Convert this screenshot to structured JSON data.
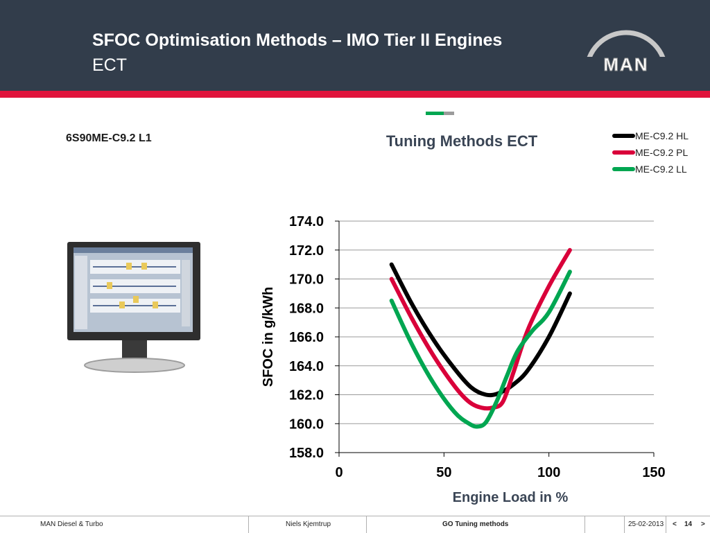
{
  "header": {
    "title": "SFOC Optimisation Methods – IMO Tier II Engines",
    "subtitle": "ECT",
    "logo_text": "MAN",
    "bg_color": "#323d4b",
    "accent_color": "#e0143c"
  },
  "engine_label": "6S90ME-C9.2 L1",
  "image": {
    "icon": "monitor-icon"
  },
  "chart_data": {
    "type": "line",
    "title": "Tuning Methods ECT",
    "xlabel": "Engine Load in %",
    "ylabel": "SFOC in g/kWh",
    "xlim": [
      0,
      150
    ],
    "ylim": [
      158,
      174
    ],
    "xticks": [
      "0",
      "50",
      "100",
      "150"
    ],
    "yticks": [
      "158.0",
      "160.0",
      "162.0",
      "164.0",
      "166.0",
      "168.0",
      "170.0",
      "172.0",
      "174.0"
    ],
    "grid": "horizontal",
    "legend_position": "top-right",
    "series": [
      {
        "name": "ME-C9.2 HL",
        "color": "#000000",
        "x": [
          25,
          35,
          45,
          55,
          63,
          70,
          76,
          83,
          90,
          100,
          110
        ],
        "y": [
          171.0,
          168.2,
          165.8,
          163.8,
          162.5,
          162.0,
          162.1,
          162.7,
          163.7,
          166.0,
          169.0
        ]
      },
      {
        "name": "ME-C9.2 PL",
        "color": "#d9003a",
        "x": [
          25,
          35,
          45,
          55,
          62,
          68,
          73,
          78,
          83,
          90,
          100,
          110
        ],
        "y": [
          170.0,
          167.2,
          164.7,
          162.6,
          161.5,
          161.1,
          161.1,
          161.5,
          163.5,
          166.5,
          169.5,
          172.0
        ]
      },
      {
        "name": "ME-C9.2 LL",
        "color": "#00a651",
        "x": [
          25,
          35,
          45,
          55,
          62,
          66,
          70,
          75,
          80,
          85,
          92,
          100,
          110
        ],
        "y": [
          168.5,
          165.4,
          162.8,
          160.8,
          160.0,
          159.8,
          160.1,
          161.5,
          163.3,
          165.0,
          166.4,
          167.7,
          170.5
        ]
      }
    ]
  },
  "footer": {
    "company": "MAN Diesel & Turbo",
    "author": "Niels Kjemtrup",
    "title": "GO Tuning methods",
    "date": "25-02-2013",
    "prev": "<",
    "page": "14",
    "next": ">"
  }
}
